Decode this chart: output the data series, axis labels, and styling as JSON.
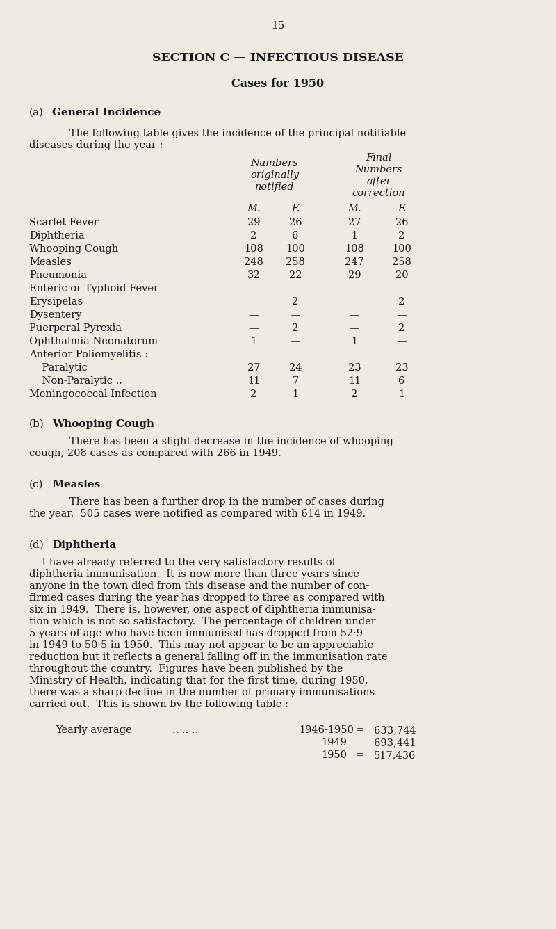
{
  "page_number": "15",
  "background_color": "#f0ece3",
  "text_color": "#1a1a1a",
  "main_title": "SECTION C — INFECTIOUS DISEASE",
  "subtitle": "Cases for 1950",
  "section_a_label": "(a)",
  "section_a_title": "General Incidence",
  "section_a_intro_1": "The following table gives the incidence of the principal notifiable",
  "section_a_intro_2": "diseases during the year :",
  "col_header_1a": "Numbers",
  "col_header_1b": "originally",
  "col_header_1c": "notified",
  "col_header_2a": "Final",
  "col_header_2b": "Numbers",
  "col_header_2c": "after",
  "col_header_2d": "correction",
  "col_M": "M.",
  "col_F": "F.",
  "table_rows": [
    [
      "Scarlet Fever",
      "..",
      "..",
      "..",
      "29",
      "26",
      "27",
      "26"
    ],
    [
      "Diphtheria",
      "..",
      "..",
      "..",
      "2",
      "6",
      "1",
      "2"
    ],
    [
      "Whooping Cough",
      "..",
      "..",
      "108",
      "100",
      "108",
      "100"
    ],
    [
      "Measles  ..",
      "..",
      "..",
      "..",
      "248",
      "258",
      "247",
      "258"
    ],
    [
      "Pneumonia",
      "..",
      "..",
      "..",
      "32",
      "22",
      "29",
      "20"
    ],
    [
      "Enteric or Typhoid Fever",
      "..",
      "—",
      "—",
      "—",
      "—"
    ],
    [
      "Erysipelas",
      "..",
      "..",
      "..",
      "—",
      "2",
      "—",
      "2"
    ],
    [
      "Dysentery",
      "..",
      "..",
      "..",
      "—",
      "—",
      "—",
      "—"
    ],
    [
      "Puerperal Pyrexia",
      "..",
      "..",
      "—",
      "2",
      "—",
      "2"
    ],
    [
      "Ophthalmia Neonatorum",
      "..",
      "1",
      "—",
      "1",
      "—"
    ],
    [
      "Anterior Poliomyelitis :",
      "",
      "",
      "",
      ""
    ],
    [
      "Paralytic",
      "..",
      "..",
      "..",
      "27",
      "24",
      "23",
      "23"
    ],
    [
      "Non-Paralytic ..",
      "..",
      "..",
      "11",
      "7",
      "11",
      "6"
    ],
    [
      "Meningococcal Infection",
      "..",
      "2",
      "1",
      "2",
      "1"
    ]
  ],
  "table_simple": [
    [
      "Scarlet Fever",
      "29",
      "26",
      "27",
      "26"
    ],
    [
      "Diphtheria",
      "2",
      "6",
      "1",
      "2"
    ],
    [
      "Whooping Cough",
      "108",
      "100",
      "108",
      "100"
    ],
    [
      "Measles",
      "248",
      "258",
      "247",
      "258"
    ],
    [
      "Pneumonia",
      "32",
      "22",
      "29",
      "20"
    ],
    [
      "Enteric or Typhoid Fever",
      "—",
      "—",
      "—",
      "—"
    ],
    [
      "Erysipelas",
      "—",
      "2",
      "—",
      "2"
    ],
    [
      "Dysentery",
      "—",
      "—",
      "—",
      "—"
    ],
    [
      "Puerperal Pyrexia",
      "—",
      "2",
      "—",
      "2"
    ],
    [
      "Ophthalmia Neonatorum",
      "1",
      "—",
      "1",
      "—"
    ],
    [
      "Anterior Poliomyelitis :",
      "",
      "",
      "",
      ""
    ],
    [
      "    Paralytic",
      "27",
      "24",
      "23",
      "23"
    ],
    [
      "    Non-Paralytic ..",
      "11",
      "7",
      "11",
      "6"
    ],
    [
      "Meningococcal Infection",
      "2",
      "1",
      "2",
      "1"
    ]
  ],
  "section_b_label": "(b)",
  "section_b_title": "Whooping Cough",
  "section_b_text_1": "There has been a slight decrease in the incidence of whooping",
  "section_b_text_2": "cough, 208 cases as compared with 266 in 1949.",
  "section_c_label": "(c)",
  "section_c_title": "Measles",
  "section_c_text_1": "There has been a further drop in the number of cases during",
  "section_c_text_2": "the year.  505 cases were notified as compared with 614 in 1949.",
  "section_d_label": "(d)",
  "section_d_title": "Diphtheria",
  "section_d_lines": [
    "    I have already referred to the very satisfactory results of",
    "diphtheria immunisation.  It is now more than three years since",
    "anyone in the town died from this disease and the number of con-",
    "firmed cases during the year has dropped to three as compared with",
    "six in 1949.  There is, however, one aspect of diphtheria immunisa-",
    "tion which is not so satisfactory.  The percentage of children under",
    "5 years of age who have been immunised has dropped from 52·9",
    "in 1949 to 50·5 in 1950.  This may not appear to be an appreciable",
    "reduction but it reflects a general falling off in the immunisation rate",
    "throughout the country.  Figures have been published by the",
    "Ministry of Health, indicating that for the first time, during 1950,",
    "there was a sharp decline in the number of primary immunisations",
    "carried out.  This is shown by the following table :"
  ],
  "yearly_label": "Yearly average",
  "yearly_dots": ".. .. ..",
  "yearly_data": [
    [
      "1946-1950",
      "=",
      "633,744"
    ],
    [
      "1949",
      "=",
      "693,441"
    ],
    [
      "1950",
      "=",
      "517,436"
    ]
  ]
}
